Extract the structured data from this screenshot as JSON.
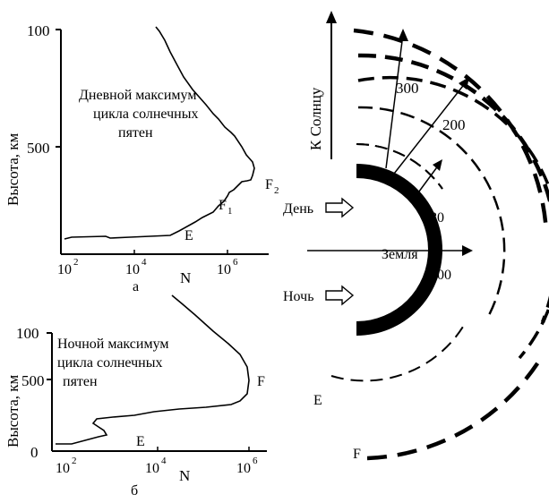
{
  "chart_data": [
    {
      "type": "line",
      "panel_label": "а",
      "annotation": [
        "Дневной максимум",
        "цикла солнечных",
        "пятен"
      ],
      "ylabel": "Высота, км",
      "xlabel": "N",
      "xscale": "log",
      "x_ticks": [
        {
          "base": "10",
          "exp": "2"
        },
        {
          "base": "10",
          "exp": "4"
        },
        {
          "base": "10",
          "exp": "6"
        }
      ],
      "y_ticks": [
        "100",
        "500"
      ],
      "layer_labels": {
        "E": "E",
        "F1": "F",
        "F1_sub": "1",
        "F2": "F",
        "F2_sub": "2"
      }
    },
    {
      "type": "line",
      "panel_label": "б",
      "annotation": [
        "Ночной максимум",
        "цикла солнечных",
        "пятен"
      ],
      "ylabel": "Высота, км",
      "xlabel": "N",
      "xscale": "log",
      "x_ticks": [
        {
          "base": "10",
          "exp": "2"
        },
        {
          "base": "10",
          "exp": "4"
        },
        {
          "base": "10",
          "exp": "6"
        }
      ],
      "y_ticks": [
        "100",
        "500",
        "0"
      ],
      "layer_labels": {
        "E": "E",
        "F": "F"
      }
    }
  ],
  "right_diagram": {
    "earth_label": "Земля",
    "sun_label": "К Солнцу",
    "day_label": "День",
    "night_label": "Ночь",
    "altitudes": [
      "300",
      "200",
      "80",
      "100"
    ],
    "layer_E": "E",
    "layer_F": "F"
  }
}
